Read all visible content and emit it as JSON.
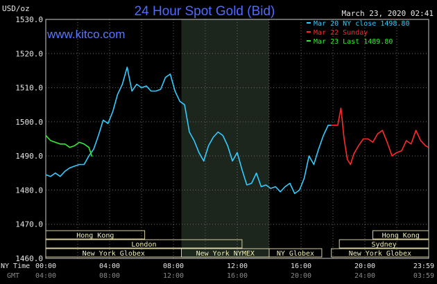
{
  "chart_data": {
    "type": "line",
    "title": "24 Hour Spot Gold (Bid)",
    "unit": "USD/oz",
    "timestamp": "March 23, 2020 02:41",
    "site": "www.kitco.com",
    "ylim": [
      1460,
      1530
    ],
    "y_ticks": [
      "1460.0",
      "1470.0",
      "1480.0",
      "1490.0",
      "1500.0",
      "1510.0",
      "1520.0",
      "1530.0"
    ],
    "xlim": [
      0,
      24
    ],
    "x_ticks_ny": [
      "00:00",
      "04:00",
      "08:00",
      "12:00",
      "16:00",
      "20:00",
      "23:59"
    ],
    "x_ticks_gmt": [
      "04:00",
      "08:00",
      "12:00",
      "16:00",
      "20:00",
      "24:00",
      "03:59"
    ],
    "ny_time_label": "NY Time",
    "gmt_label": "GMT",
    "shaded_hours": [
      8.5,
      14.0
    ],
    "legend": [
      {
        "label": "Mar 20 NY close 1498.80",
        "color": "#33ccff"
      },
      {
        "label": "Mar 22 Sunday",
        "color": "#ff2a2a"
      },
      {
        "label": "Mar 23 Last 1489.80",
        "color": "#33ee33"
      }
    ],
    "series": [
      {
        "name": "Mar 20 NY close 1498.80",
        "color": "#33ccff",
        "x": [
          0,
          0.3,
          0.6,
          0.9,
          1.2,
          1.5,
          1.8,
          2.1,
          2.4,
          2.7,
          3.0,
          3.3,
          3.6,
          3.9,
          4.2,
          4.5,
          4.8,
          5.1,
          5.4,
          5.7,
          6.0,
          6.3,
          6.6,
          6.9,
          7.2,
          7.5,
          7.8,
          8.1,
          8.4,
          8.7,
          9.0,
          9.3,
          9.6,
          9.9,
          10.2,
          10.5,
          10.8,
          11.1,
          11.4,
          11.7,
          12.0,
          12.3,
          12.6,
          12.9,
          13.2,
          13.5,
          13.8,
          14.1,
          14.4,
          14.7,
          15.0,
          15.3,
          15.6,
          15.9,
          16.2,
          16.5,
          16.8,
          17.1,
          17.4,
          17.7,
          17.9
        ],
        "y": [
          1484.5,
          1484,
          1485,
          1484,
          1485.5,
          1486.5,
          1487,
          1487.5,
          1487.5,
          1490,
          1492,
          1496,
          1500.5,
          1499.5,
          1503,
          1508,
          1511,
          1516,
          1509,
          1511,
          1510,
          1510.5,
          1509,
          1509,
          1509.5,
          1513,
          1514,
          1509,
          1506,
          1505,
          1497,
          1494.5,
          1491,
          1488.5,
          1493,
          1495.5,
          1497,
          1496,
          1493,
          1488.5,
          1491,
          1486,
          1481.5,
          1482,
          1485,
          1481,
          1481.5,
          1480.5,
          1481,
          1479.5,
          1481,
          1482,
          1479,
          1480,
          1483.5,
          1490,
          1487.5,
          1492,
          1496,
          1499,
          1499
        ]
      },
      {
        "name": "Mar 22 Sunday",
        "color": "#ff2a2a",
        "x": [
          17.9,
          18.3,
          18.5,
          18.7,
          18.9,
          19.1,
          19.3,
          19.6,
          19.9,
          20.2,
          20.5,
          20.8,
          21.1,
          21.4,
          21.7,
          22.0,
          22.3,
          22.6,
          22.9,
          23.2,
          23.5,
          23.8,
          23.99
        ],
        "y": [
          1499,
          1499,
          1504,
          1495,
          1489,
          1487.5,
          1490.5,
          1493,
          1495,
          1495,
          1494,
          1496.5,
          1497.5,
          1494,
          1490,
          1491,
          1491.5,
          1494.5,
          1493.5,
          1497.5,
          1494.5,
          1493,
          1492.5
        ]
      },
      {
        "name": "Mar 23 Last 1489.80",
        "color": "#33ee33",
        "x": [
          0,
          0.3,
          0.6,
          0.9,
          1.2,
          1.5,
          1.8,
          2.1,
          2.4,
          2.7,
          2.9
        ],
        "y": [
          1496,
          1494.5,
          1494,
          1493.5,
          1493.5,
          1492.5,
          1493,
          1494,
          1493.5,
          1492.5,
          1489.8
        ]
      }
    ],
    "market_rows": [
      [
        {
          "label": "Hong Kong",
          "from": 0,
          "to": 6.2
        },
        {
          "label": "Hong Kong",
          "from": 20.5,
          "to": 24
        }
      ],
      [
        {
          "label": "London",
          "from": 0,
          "to": 12.3
        },
        {
          "label": "Sydney",
          "from": 18.4,
          "to": 24
        }
      ],
      [
        {
          "label": "New York Globex",
          "from": 0,
          "to": 8.5
        },
        {
          "label": "New York NYMEX",
          "from": 8.5,
          "to": 14.0
        },
        {
          "label": "NY Globex",
          "from": 14.0,
          "to": 17.3
        },
        {
          "label": "New York Globex",
          "from": 17.9,
          "to": 24
        }
      ]
    ]
  }
}
